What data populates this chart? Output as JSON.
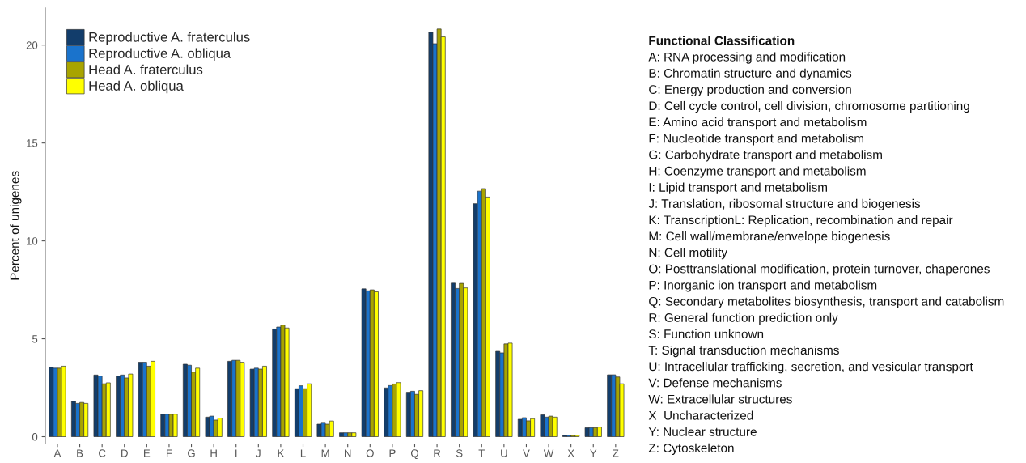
{
  "chart_data": {
    "type": "bar",
    "ylabel": "Percent of unigenes",
    "categories": [
      "A",
      "B",
      "C",
      "D",
      "E",
      "F",
      "G",
      "H",
      "I",
      "J",
      "K",
      "L",
      "M",
      "N",
      "O",
      "P",
      "Q",
      "R",
      "S",
      "T",
      "U",
      "V",
      "W",
      "X",
      "Y",
      "Z"
    ],
    "series": [
      {
        "name": "Reproductive A. fraterculus",
        "color": "#123d6b",
        "values": [
          3.55,
          1.8,
          3.15,
          3.1,
          3.8,
          1.15,
          3.7,
          1.0,
          3.85,
          3.45,
          5.5,
          2.45,
          0.64,
          0.2,
          7.55,
          2.49,
          2.27,
          20.65,
          7.84,
          11.9,
          4.36,
          0.89,
          1.12,
          0.07,
          0.46,
          3.16
        ]
      },
      {
        "name": "Reproductive A. obliqua",
        "color": "#1a73cc",
        "values": [
          3.5,
          1.7,
          3.1,
          3.15,
          3.8,
          1.15,
          3.65,
          1.05,
          3.9,
          3.5,
          5.6,
          2.6,
          0.73,
          0.2,
          7.45,
          2.61,
          2.32,
          20.07,
          7.57,
          12.54,
          4.28,
          0.97,
          1.0,
          0.07,
          0.46,
          3.16
        ]
      },
      {
        "name": "Head A. fraterculus",
        "color": "#a8a400",
        "values": [
          3.5,
          1.75,
          2.7,
          3.0,
          3.6,
          1.15,
          3.3,
          0.85,
          3.9,
          3.45,
          5.7,
          2.45,
          0.64,
          0.2,
          7.5,
          2.69,
          2.16,
          20.82,
          7.83,
          12.67,
          4.74,
          0.81,
          1.05,
          0.07,
          0.46,
          3.05
        ]
      },
      {
        "name": "Head A. obliqua",
        "color": "#ffff00",
        "values": [
          3.6,
          1.7,
          2.75,
          3.2,
          3.85,
          1.15,
          3.5,
          0.95,
          3.8,
          3.6,
          5.55,
          2.7,
          0.8,
          0.2,
          7.4,
          2.76,
          2.35,
          20.42,
          7.6,
          12.24,
          4.78,
          0.92,
          1.0,
          0.07,
          0.49,
          2.7
        ]
      }
    ],
    "ylim": [
      -0.35,
      21.9
    ],
    "yticks": [
      0,
      5,
      10,
      15,
      20
    ],
    "grid": false,
    "legend": "top left",
    "annotations": [
      "Functional Classification",
      "A: RNA processing and modification",
      "B: Chromatin structure and dynamics",
      "C: Energy production and conversion",
      "D: Cell cycle control, cell division, chromosome partitioning",
      "E: Amino acid transport and metabolism",
      "F: Nucleotide transport and metabolism",
      "G: Carbohydrate transport and metabolism",
      "H: Coenzyme transport and metabolism",
      "I: Lipid transport and metabolism",
      "J: Translation, ribosomal structure and biogenesis",
      "K: TranscriptionL: Replication, recombination and repair",
      "M: Cell wall/membrane/envelope biogenesis",
      "N: Cell motility",
      "O: Posttranslational modification, protein turnover, chaperones",
      "P: Inorganic ion transport and metabolism",
      "Q: Secondary metabolites biosynthesis, transport and catabolism",
      "R: General function prediction only",
      "S: Function unknown",
      "T: Signal transduction mechanisms",
      "U: Intracellular trafficking, secretion, and vesicular transport",
      "V: Defense mechanisms",
      "W: Extracellular structures",
      "X  Uncharacterized",
      "Y: Nuclear structure",
      "Z: Cytoskeleton"
    ]
  }
}
